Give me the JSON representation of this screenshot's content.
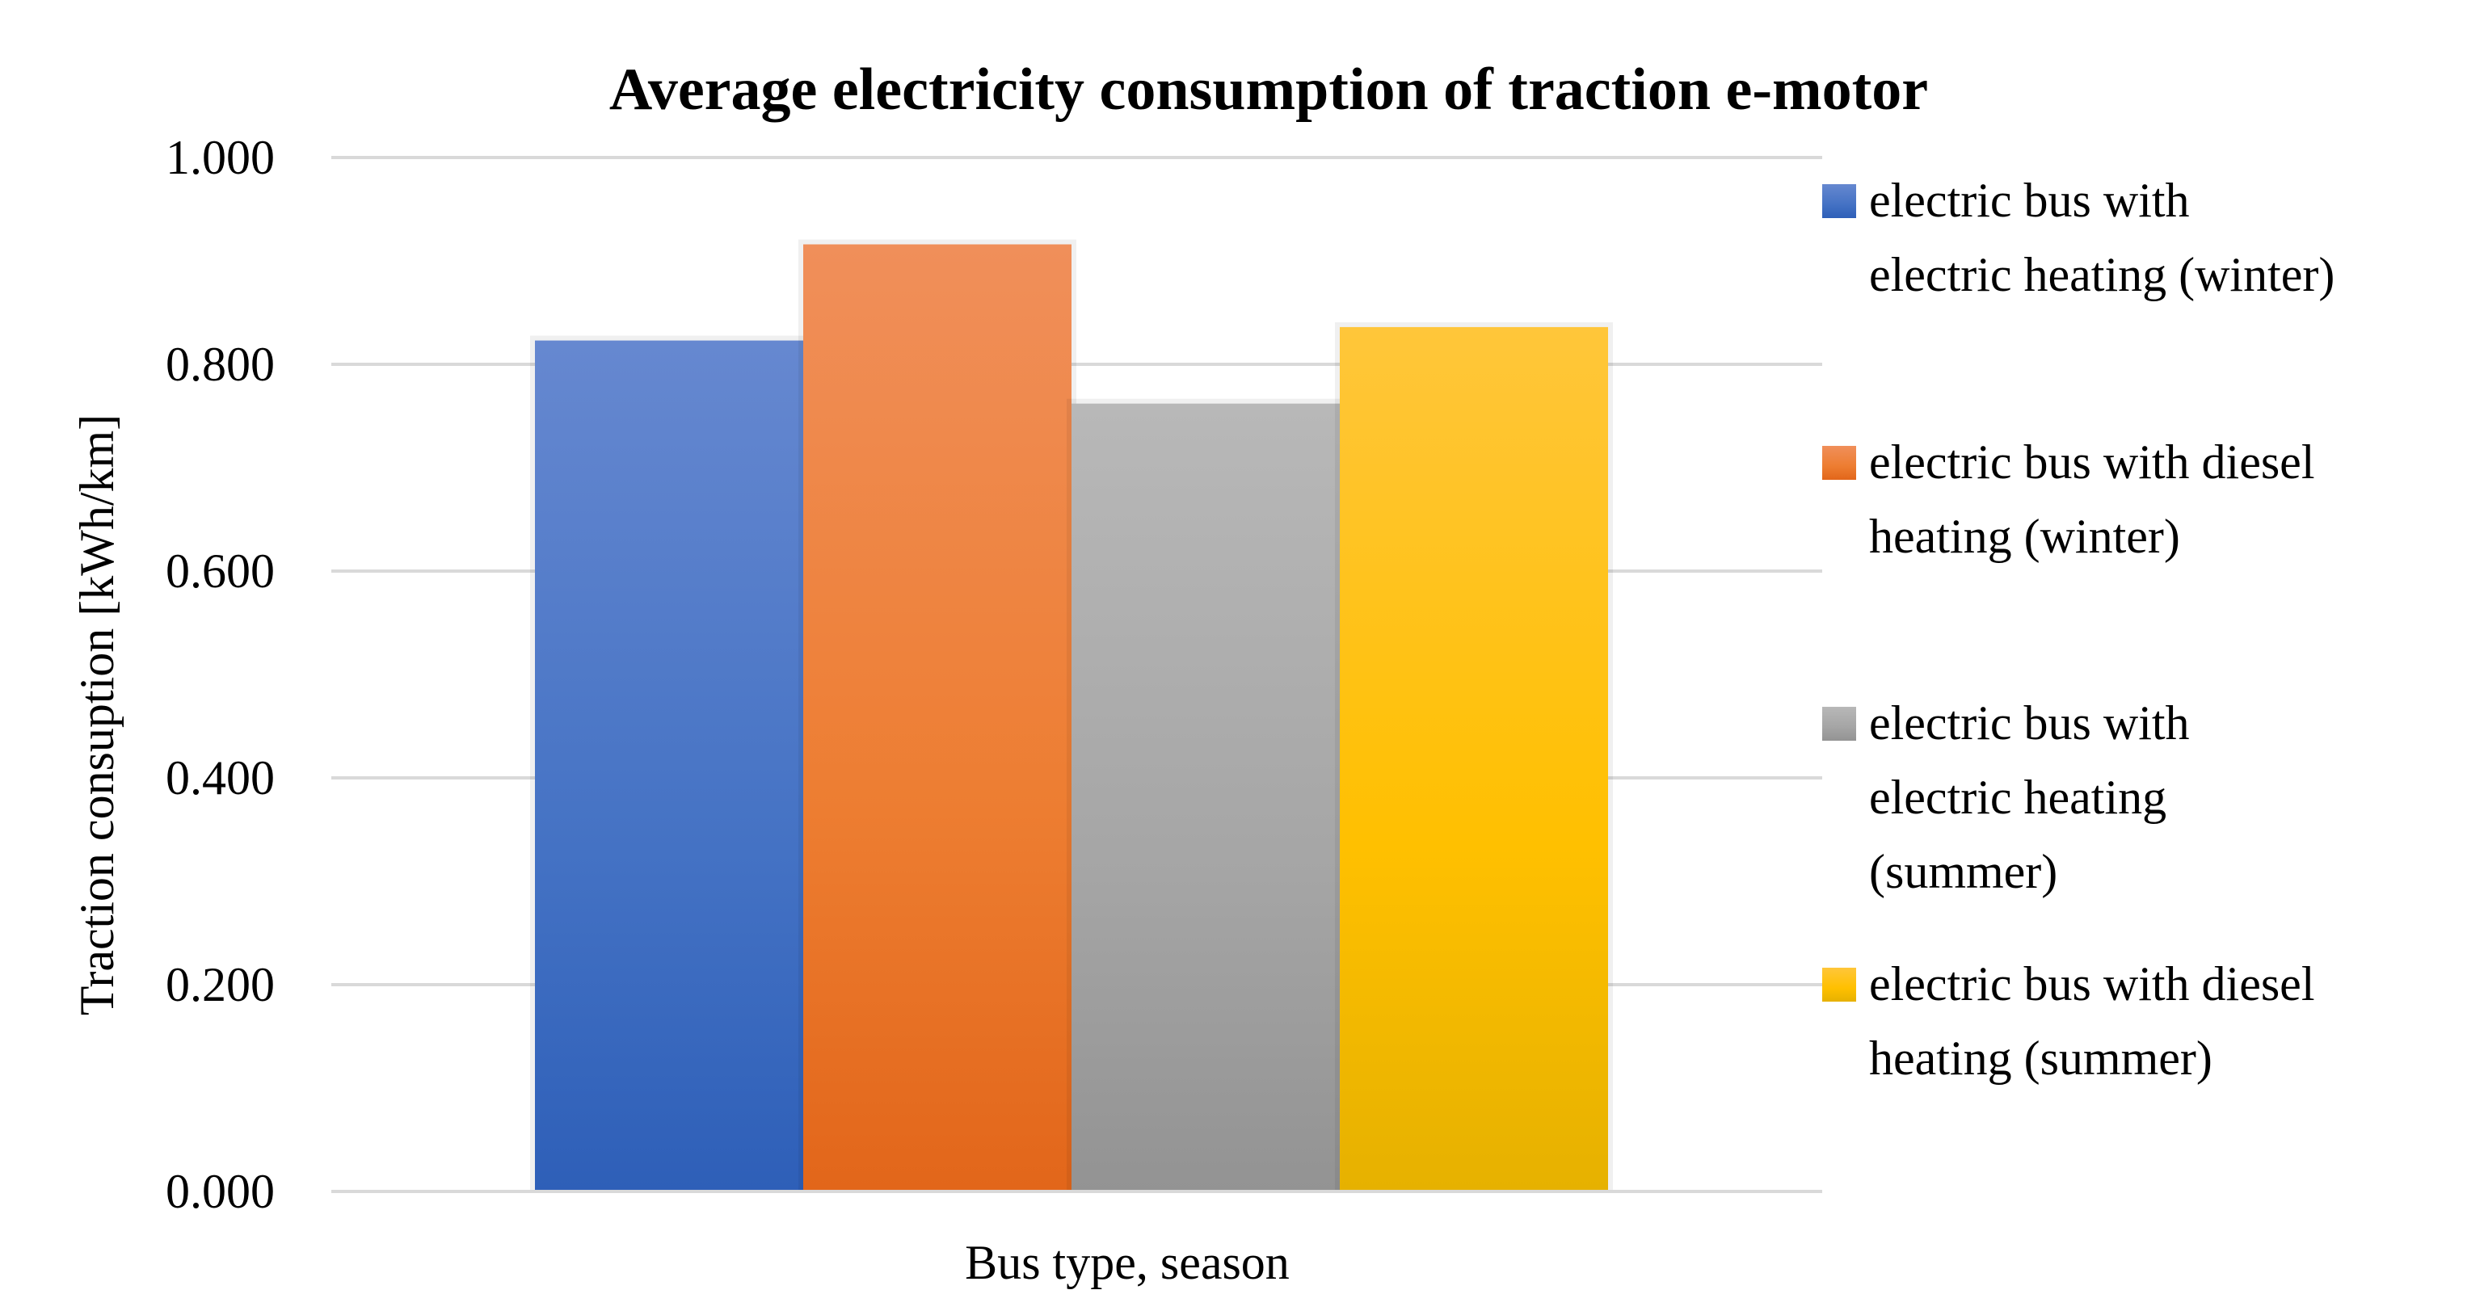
{
  "chart_data": {
    "type": "bar",
    "title": "Average electricity consumption of traction e-motor",
    "xlabel": "Bus type, season",
    "ylabel": "Traction consuption [kWh/km]",
    "ylim": [
      0,
      1
    ],
    "yticks": [
      "0.000",
      "0.200",
      "0.400",
      "0.600",
      "0.800",
      "1.000"
    ],
    "ytick_values": [
      0,
      0.2,
      0.4,
      0.6,
      0.8,
      1.0
    ],
    "grid": true,
    "legend_position": "right",
    "categories": [
      ""
    ],
    "series": [
      {
        "name": "electric bus with electric heating (winter)",
        "legend_lines": [
          "electric bus with",
          "electric heating (winter)"
        ],
        "values": [
          0.823
        ],
        "color": "#4472C4",
        "color_light": "#6688D0",
        "color_dark": "#2E5FB8"
      },
      {
        "name": "electric bus with diesel heating (winter)",
        "legend_lines": [
          "electric bus with diesel",
          "heating (winter)"
        ],
        "values": [
          0.916
        ],
        "color": "#ED7D31",
        "color_light": "#F08F5A",
        "color_dark": "#E2661A"
      },
      {
        "name": "electric bus with electric heating (summer)",
        "legend_lines": [
          "electric bus with",
          "electric heating",
          "(summer)"
        ],
        "values": [
          0.762
        ],
        "color": "#A5A5A5",
        "color_light": "#B8B8B8",
        "color_dark": "#939393"
      },
      {
        "name": "electric bus with diesel heating (summer)",
        "legend_lines": [
          "electric bus with diesel",
          "heating (summer)"
        ],
        "values": [
          0.836
        ],
        "color": "#FFC000",
        "color_light": "#FFC63A",
        "color_dark": "#E6B100"
      }
    ]
  }
}
